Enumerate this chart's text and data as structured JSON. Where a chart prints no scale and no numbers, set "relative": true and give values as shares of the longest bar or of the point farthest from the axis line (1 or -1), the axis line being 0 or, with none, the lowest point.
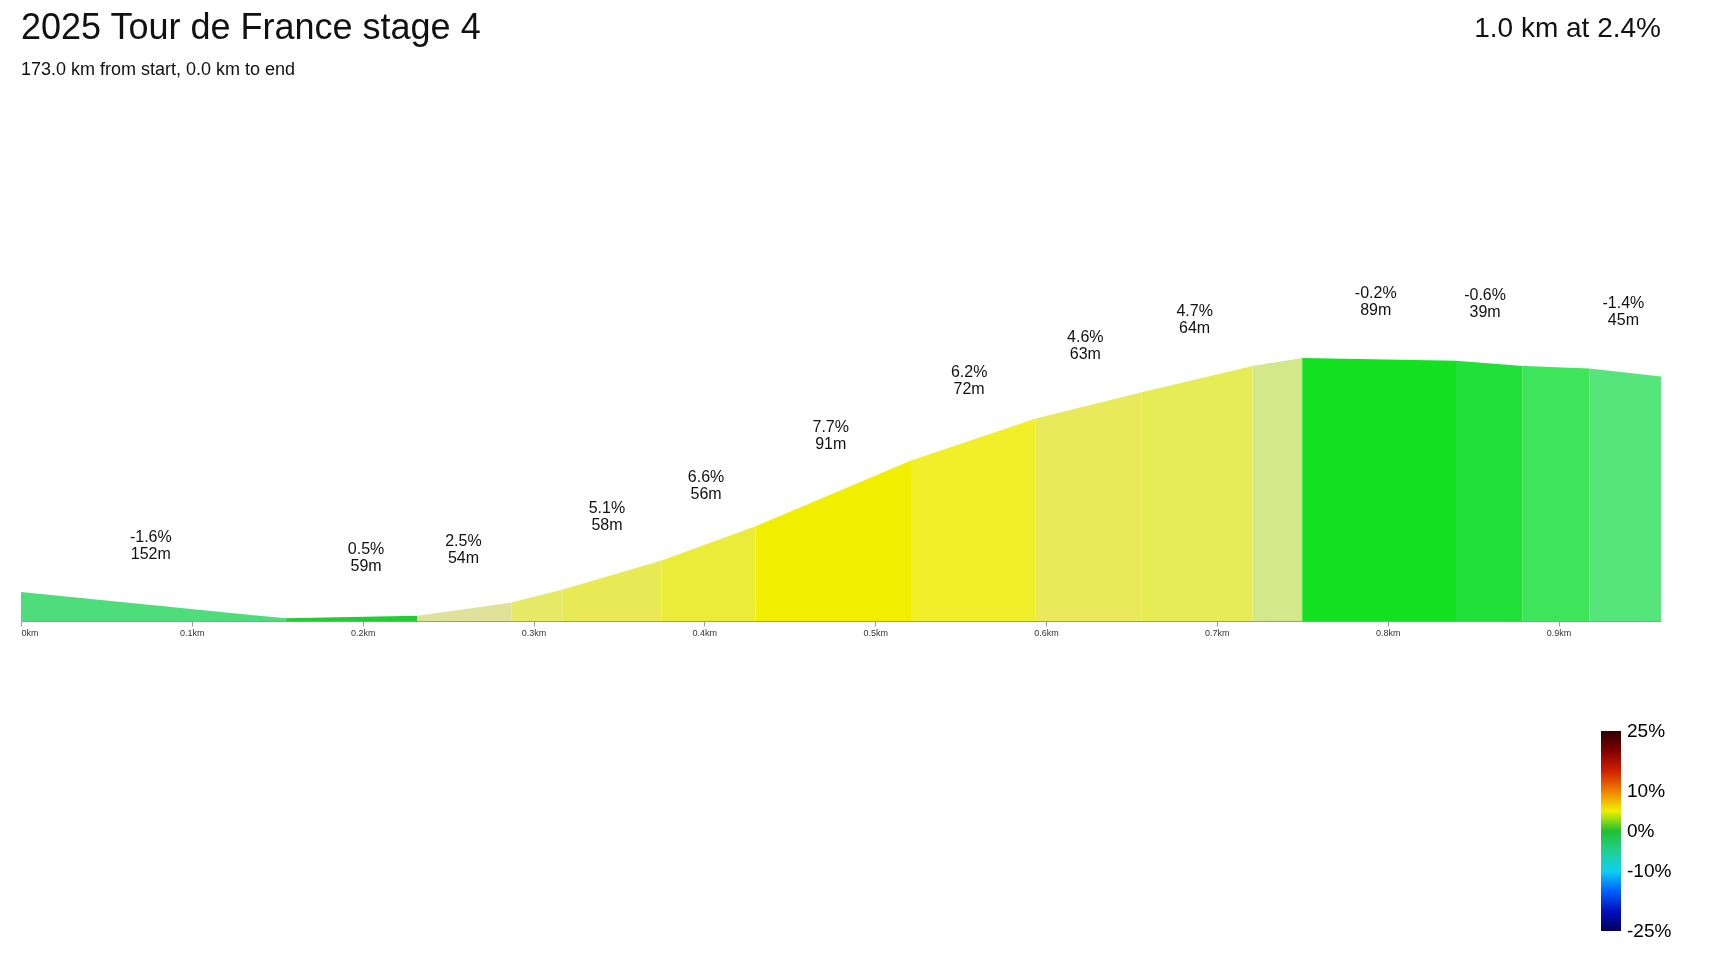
{
  "chart_data": {
    "type": "area",
    "title": "2025 Tour de France stage 4",
    "subtitle": "173.0 km from start, 0.0 km to end",
    "relative": true,
    "xlim": [
      0,
      0.96
    ],
    "xticks": [
      {
        "value": 0,
        "label": "0km"
      },
      {
        "value": 0.1,
        "label": "0.1km"
      },
      {
        "value": 0.2,
        "label": "0.2km"
      },
      {
        "value": 0.3,
        "label": "0.3km"
      },
      {
        "value": 0.4,
        "label": "0.4km"
      },
      {
        "value": 0.5,
        "label": "0.5km"
      },
      {
        "value": 0.6,
        "label": "0.6km"
      },
      {
        "value": 0.7,
        "label": "0.7km"
      },
      {
        "value": 0.8,
        "label": "0.8km"
      },
      {
        "value": 0.9,
        "label": "0.9km"
      }
    ],
    "series": [
      {
        "color": "#4fdc7a",
        "x": [
          0,
          0.155
        ],
        "values": [
          0.11,
          0.01
        ]
      },
      {
        "color": "#22cc33",
        "x": [
          0.155,
          0.232
        ],
        "values": [
          0.01,
          0.02
        ]
      },
      {
        "color": "#dfe39a",
        "x": [
          0.232,
          0.287
        ],
        "values": [
          0.02,
          0.07
        ]
      },
      {
        "color": "#e6ea66",
        "x": [
          0.287,
          0.317
        ],
        "values": [
          0.07,
          0.12
        ]
      },
      {
        "color": "#e7ea55",
        "x": [
          0.317,
          0.375
        ],
        "values": [
          0.12,
          0.23
        ]
      },
      {
        "color": "#ebec3a",
        "x": [
          0.375,
          0.43
        ],
        "values": [
          0.23,
          0.36
        ]
      },
      {
        "color": "#f1ee00",
        "x": [
          0.43,
          0.521
        ],
        "values": [
          0.36,
          0.61
        ]
      },
      {
        "color": "#f0ef2a",
        "x": [
          0.521,
          0.594
        ],
        "values": [
          0.61,
          0.77
        ]
      },
      {
        "color": "#e8ea5c",
        "x": [
          0.594,
          0.656
        ],
        "values": [
          0.77,
          0.87
        ]
      },
      {
        "color": "#e6ec55",
        "x": [
          0.656,
          0.721
        ],
        "values": [
          0.87,
          0.97
        ]
      },
      {
        "color": "#d2e88a",
        "x": [
          0.721,
          0.75
        ],
        "values": [
          0.97,
          1.0
        ]
      },
      {
        "color": "#12e021",
        "x": [
          0.75,
          0.84
        ],
        "values": [
          1.0,
          0.99
        ]
      },
      {
        "color": "#22e03a",
        "x": [
          0.84,
          0.879
        ],
        "values": [
          0.99,
          0.97
        ]
      },
      {
        "color": "#3ee45a",
        "x": [
          0.879,
          0.918
        ],
        "values": [
          0.97,
          0.96
        ]
      },
      {
        "color": "#55e57a",
        "x": [
          0.918,
          0.96
        ],
        "values": [
          0.96,
          0.93
        ]
      }
    ],
    "annotations": [
      "1.0 km at 2.4%",
      {
        "text": "-1.6%\n152m",
        "x": 0.076,
        "y": 0.06
      },
      {
        "text": "0.5%\n59m",
        "x": 0.202,
        "y": 0.015
      },
      {
        "text": "2.5%\n54m",
        "x": 0.259,
        "y": 0.045
      },
      {
        "text": "5.1%\n58m",
        "x": 0.343,
        "y": 0.17
      },
      {
        "text": "6.6%\n56m",
        "x": 0.401,
        "y": 0.29
      },
      {
        "text": "7.7%\n91m",
        "x": 0.474,
        "y": 0.48
      },
      {
        "text": "6.2%\n72m",
        "x": 0.555,
        "y": 0.69
      },
      {
        "text": "4.6%\n63m",
        "x": 0.623,
        "y": 0.82
      },
      {
        "text": "4.7%\n64m",
        "x": 0.687,
        "y": 0.92
      },
      {
        "text": "-0.2%\n89m",
        "x": 0.793,
        "y": 0.99
      },
      {
        "text": "-0.6%\n39m",
        "x": 0.857,
        "y": 0.98
      },
      {
        "text": "-1.4%\n45m",
        "x": 0.938,
        "y": 0.95
      }
    ],
    "clim": [
      -25,
      25
    ],
    "cticks": [
      {
        "value": 25,
        "label": "25%"
      },
      {
        "value": 10,
        "label": "10%"
      },
      {
        "value": 0,
        "label": "0%"
      },
      {
        "value": -10,
        "label": "-10%"
      },
      {
        "value": -25,
        "label": "-25%"
      }
    ]
  }
}
